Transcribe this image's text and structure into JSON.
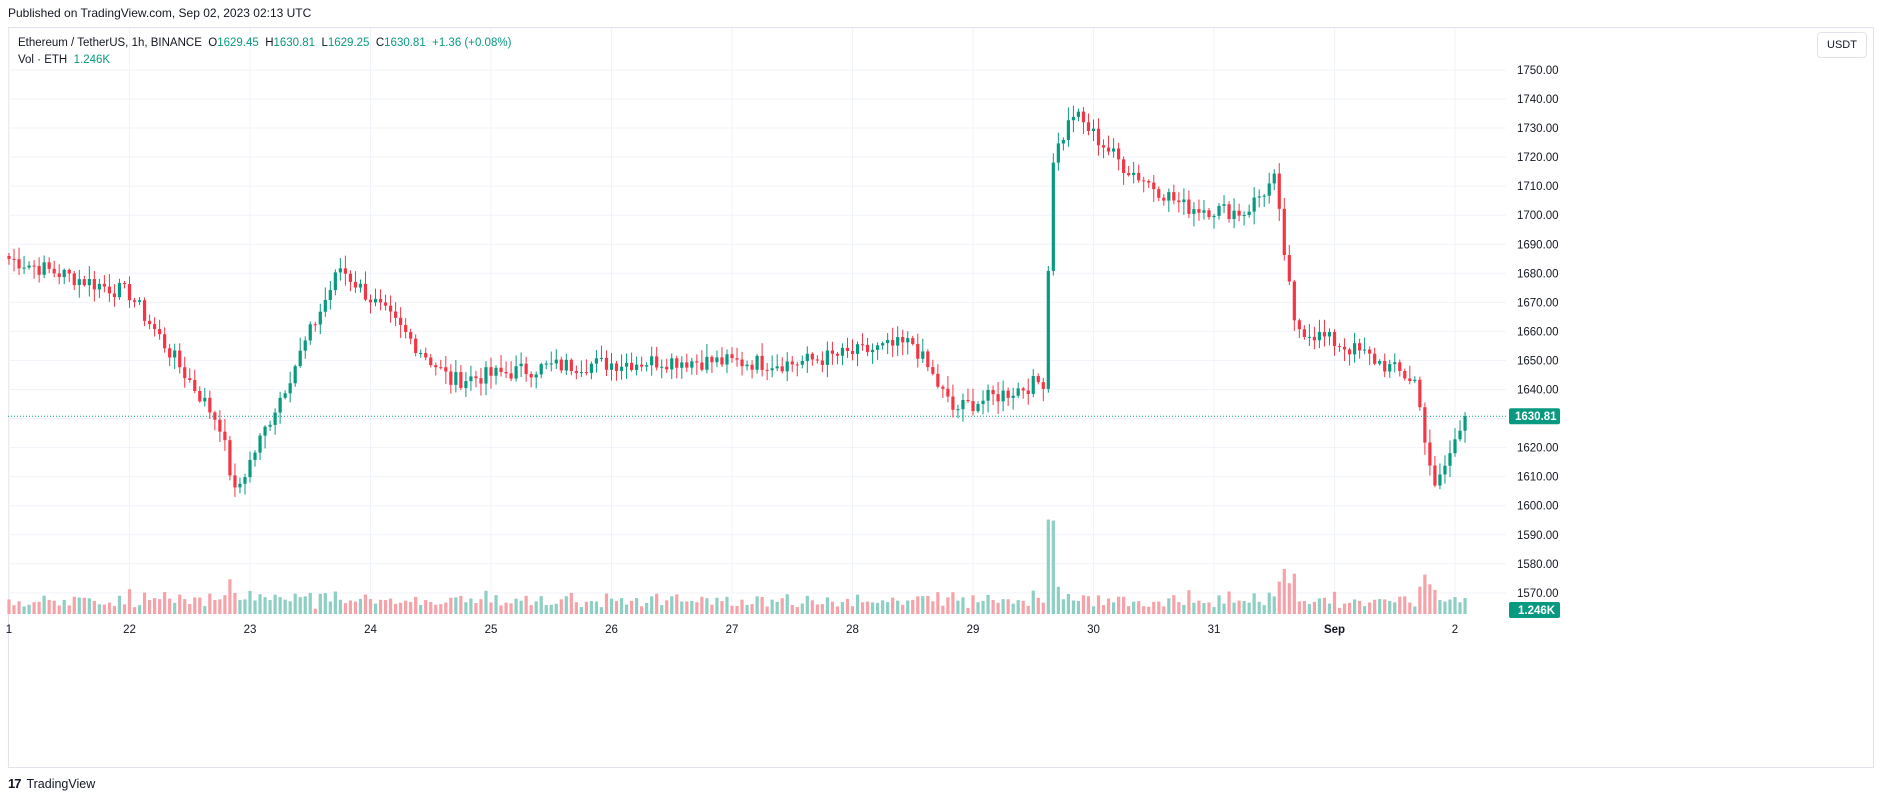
{
  "header": {
    "published": "Published on TradingView.com, Sep 02, 2023 02:13 UTC"
  },
  "legend": {
    "symbol": "Ethereum / TetherUS, 1h, BINANCE",
    "o_label": "O",
    "o_value": "1629.45",
    "h_label": "H",
    "h_value": "1630.81",
    "l_label": "L",
    "l_value": "1629.25",
    "c_label": "C",
    "c_value": "1630.81",
    "change": "+1.36 (+0.08%)",
    "vol_label": "Vol · ETH",
    "vol_value": "1.246K"
  },
  "currency_button": "USDT",
  "footer": {
    "logo": "17",
    "brand": "TradingView"
  },
  "colors": {
    "up": "#089981",
    "down": "#f23645",
    "vol_up": "#8ecfc4",
    "vol_down": "#f5a3a9",
    "grid": "#f0f3fa"
  },
  "chart_data": {
    "type": "candlestick",
    "symbol": "ETHUSDT",
    "interval": "1h",
    "exchange": "BINANCE",
    "ylim": [
      1560,
      1760
    ],
    "y_ticks": [
      "1570.00",
      "1580.00",
      "1590.00",
      "1600.00",
      "1610.00",
      "1620.00",
      "1630.00",
      "1640.00",
      "1650.00",
      "1660.00",
      "1670.00",
      "1680.00",
      "1690.00",
      "1700.00",
      "1710.00",
      "1720.00",
      "1730.00",
      "1740.00",
      "1750.00"
    ],
    "x_ticks": [
      "1",
      "22",
      "23",
      "24",
      "25",
      "26",
      "27",
      "28",
      "29",
      "30",
      "31",
      "Sep",
      "2"
    ],
    "last_price": "1630.81",
    "last_volume": "1.246K",
    "key_points": [
      {
        "time": "Aug 21 00:00",
        "price": 1685
      },
      {
        "time": "Aug 22 00:00",
        "price": 1673
      },
      {
        "time": "Aug 22 18:00",
        "price": 1628
      },
      {
        "time": "Aug 22 21:00",
        "price": 1604
      },
      {
        "time": "Aug 23 18:00",
        "price": 1682
      },
      {
        "time": "Aug 24 16:00",
        "price": 1643
      },
      {
        "time": "Aug 25 12:00",
        "price": 1648
      },
      {
        "time": "Aug 26 12:00",
        "price": 1650
      },
      {
        "time": "Aug 27 12:00",
        "price": 1649
      },
      {
        "time": "Aug 28 12:00",
        "price": 1656
      },
      {
        "time": "Aug 28 20:00",
        "price": 1633
      },
      {
        "time": "Aug 29 14:00",
        "price": 1643
      },
      {
        "time": "Aug 29 16:00",
        "price": 1720
      },
      {
        "time": "Aug 29 20:00",
        "price": 1735
      },
      {
        "time": "Aug 30 06:00",
        "price": 1717
      },
      {
        "time": "Aug 30 18:00",
        "price": 1703
      },
      {
        "time": "Aug 31 06:00",
        "price": 1701
      },
      {
        "time": "Aug 31 12:00",
        "price": 1712
      },
      {
        "time": "Aug 31 16:00",
        "price": 1662
      },
      {
        "time": "Sep 1 06:00",
        "price": 1652
      },
      {
        "time": "Sep 1 16:00",
        "price": 1643
      },
      {
        "time": "Sep 1 20:00",
        "price": 1605
      },
      {
        "time": "Sep 2 02:00",
        "price": 1630.81
      }
    ]
  }
}
